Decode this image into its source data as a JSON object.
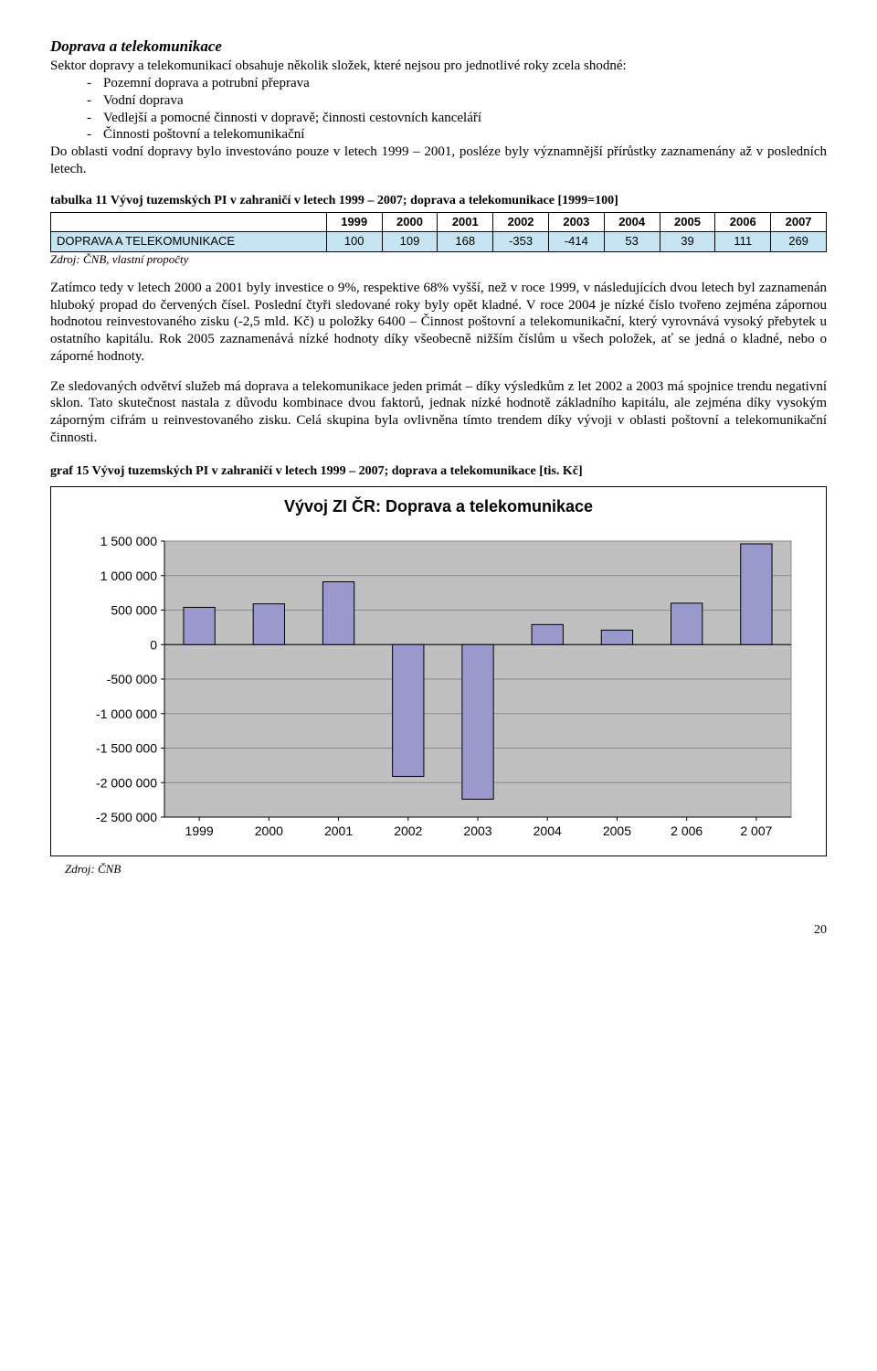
{
  "section": {
    "title": "Doprava a telekomunikace",
    "intro": "Sektor dopravy a telekomunikací obsahuje několik složek, které nejsou pro jednotlivé roky zcela shodné:",
    "bullets": [
      "Pozemní doprava a potrubní přeprava",
      "Vodní doprava",
      "Vedlejší a pomocné činnosti v dopravě; činnosti cestovních kanceláří",
      "Činnosti poštovní a telekomunikační"
    ],
    "after_bullets": "Do oblasti vodní dopravy bylo investováno pouze v letech 1999 – 2001, posléze byly významnější přírůstky zaznamenány až v posledních letech."
  },
  "table11": {
    "caption": "tabulka 11 Vývoj tuzemských PI v zahraničí v letech 1999 – 2007; doprava a telekomunikace [1999=100]",
    "years": [
      "1999",
      "2000",
      "2001",
      "2002",
      "2003",
      "2004",
      "2005",
      "2006",
      "2007"
    ],
    "row_label": "DOPRAVA A TELEKOMUNIKACE",
    "row_values": [
      "100",
      "109",
      "168",
      "-353",
      "-414",
      "53",
      "39",
      "111",
      "269"
    ],
    "row_bg": "#c7e4f3",
    "source": "Zdroj: ČNB, vlastní propočty"
  },
  "para1": "Zatímco tedy v letech 2000 a 2001 byly investice o 9%, respektive 68% vyšší, než v roce 1999, v následujících dvou letech byl zaznamenán hluboký propad do červených čísel. Poslední čtyři sledované roky byly opět kladné. V roce 2004 je nízké číslo tvořeno zejména zápornou hodnotou reinvestovaného zisku (-2,5 mld. Kč) u položky 6400 – Činnost poštovní a telekomunikační, který vyrovnává vysoký přebytek u ostatního kapitálu. Rok 2005 zaznamenává nízké hodnoty díky všeobecně nižším číslům u všech položek, ať se jedná o kladné, nebo o záporné hodnoty.",
  "para2": "Ze sledovaných odvětví služeb má doprava a telekomunikace jeden primát – díky výsledkům z let 2002 a 2003 má spojnice trendu negativní sklon. Tato skutečnost nastala z důvodu kombinace dvou faktorů, jednak nízké hodnotě základního kapitálu, ale zejména díky vysokým záporným cifrám u reinvestovaného zisku. Celá skupina byla ovlivněna tímto trendem díky vývoji v oblasti poštovní a telekomunikační činnosti.",
  "chart15": {
    "caption": "graf 15 Vývoj tuzemských PI v zahraničí v letech 1999 – 2007; doprava a telekomunikace [tis. Kč]",
    "title": "Vývoj ZI ČR: Doprava a telekomunikace",
    "type": "bar",
    "categories": [
      "1999",
      "2000",
      "2001",
      "2002",
      "2003",
      "2004",
      "2005",
      "2 006",
      "2 007"
    ],
    "values": [
      540000,
      590000,
      910000,
      -1910000,
      -2240000,
      290000,
      210000,
      600000,
      1460000
    ],
    "bar_color": "#9999cc",
    "bar_border": "#000000",
    "plot_bg": "#c0c0c0",
    "grid_color": "#8a8a8a",
    "axis_color": "#000000",
    "tick_font": "Arial",
    "tick_fontsize": 14,
    "ylim": [
      -2500000,
      1500000
    ],
    "ytick_step": 500000,
    "ytick_labels": [
      "1 500 000",
      "1 000 000",
      "500 000",
      "0",
      "-500 000",
      "-1 000 000",
      "-1 500 000",
      "-2 000 000",
      "-2 500 000"
    ],
    "ytick_values": [
      1500000,
      1000000,
      500000,
      0,
      -500000,
      -1000000,
      -1500000,
      -2000000,
      -2500000
    ],
    "bar_width_ratio": 0.45,
    "source": "Zdroj: ČNB"
  },
  "page_number": "20"
}
